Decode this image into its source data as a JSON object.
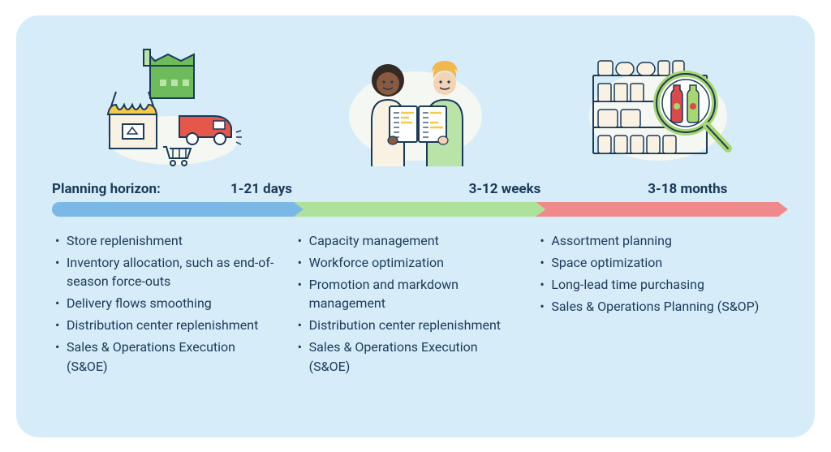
{
  "type": "infographic",
  "background_color": "#d6ecf8",
  "text_color": "#1a3a5a",
  "body_fontsize": 16,
  "header_fontsize": 17,
  "planning_label": "Planning horizon:",
  "horizons": [
    "1-21 days",
    "3-12 weeks",
    "3-18 months"
  ],
  "arrow_colors": [
    "#7cb8e6",
    "#aee29a",
    "#f08a8a"
  ],
  "columns": [
    {
      "items": [
        "Store replenishment",
        "Inventory allocation, such as end-of-season force-outs",
        "Delivery flows smoothing",
        "Distribution center replenishment",
        "Sales & Operations Execution (S&OE)"
      ]
    },
    {
      "items": [
        "Capacity management",
        "Workforce optimization",
        "Promotion and markdown management",
        "Distribution center replenishment",
        "Sales & Operations Execution (S&OE)"
      ]
    },
    {
      "items": [
        "Assortment planning",
        "Space optimization",
        "Long-lead time purchasing",
        "Sales & Operations Planning (S&OP)"
      ]
    }
  ],
  "illustration_palette": {
    "outline": "#1a3a5a",
    "green": "#6dbb5a",
    "light_green": "#b9e3a7",
    "yellow": "#f7c948",
    "red": "#e6574b",
    "cream": "#f9f2e3",
    "skin1": "#8a5a3f",
    "skin2": "#f5d2b3",
    "hair1": "#332a26",
    "hair2": "#f2b84d",
    "bottle1": "#d94a4a",
    "bottle2": "#a8d66f",
    "paper": "#ffffff",
    "blob": "#f5f7f2"
  }
}
